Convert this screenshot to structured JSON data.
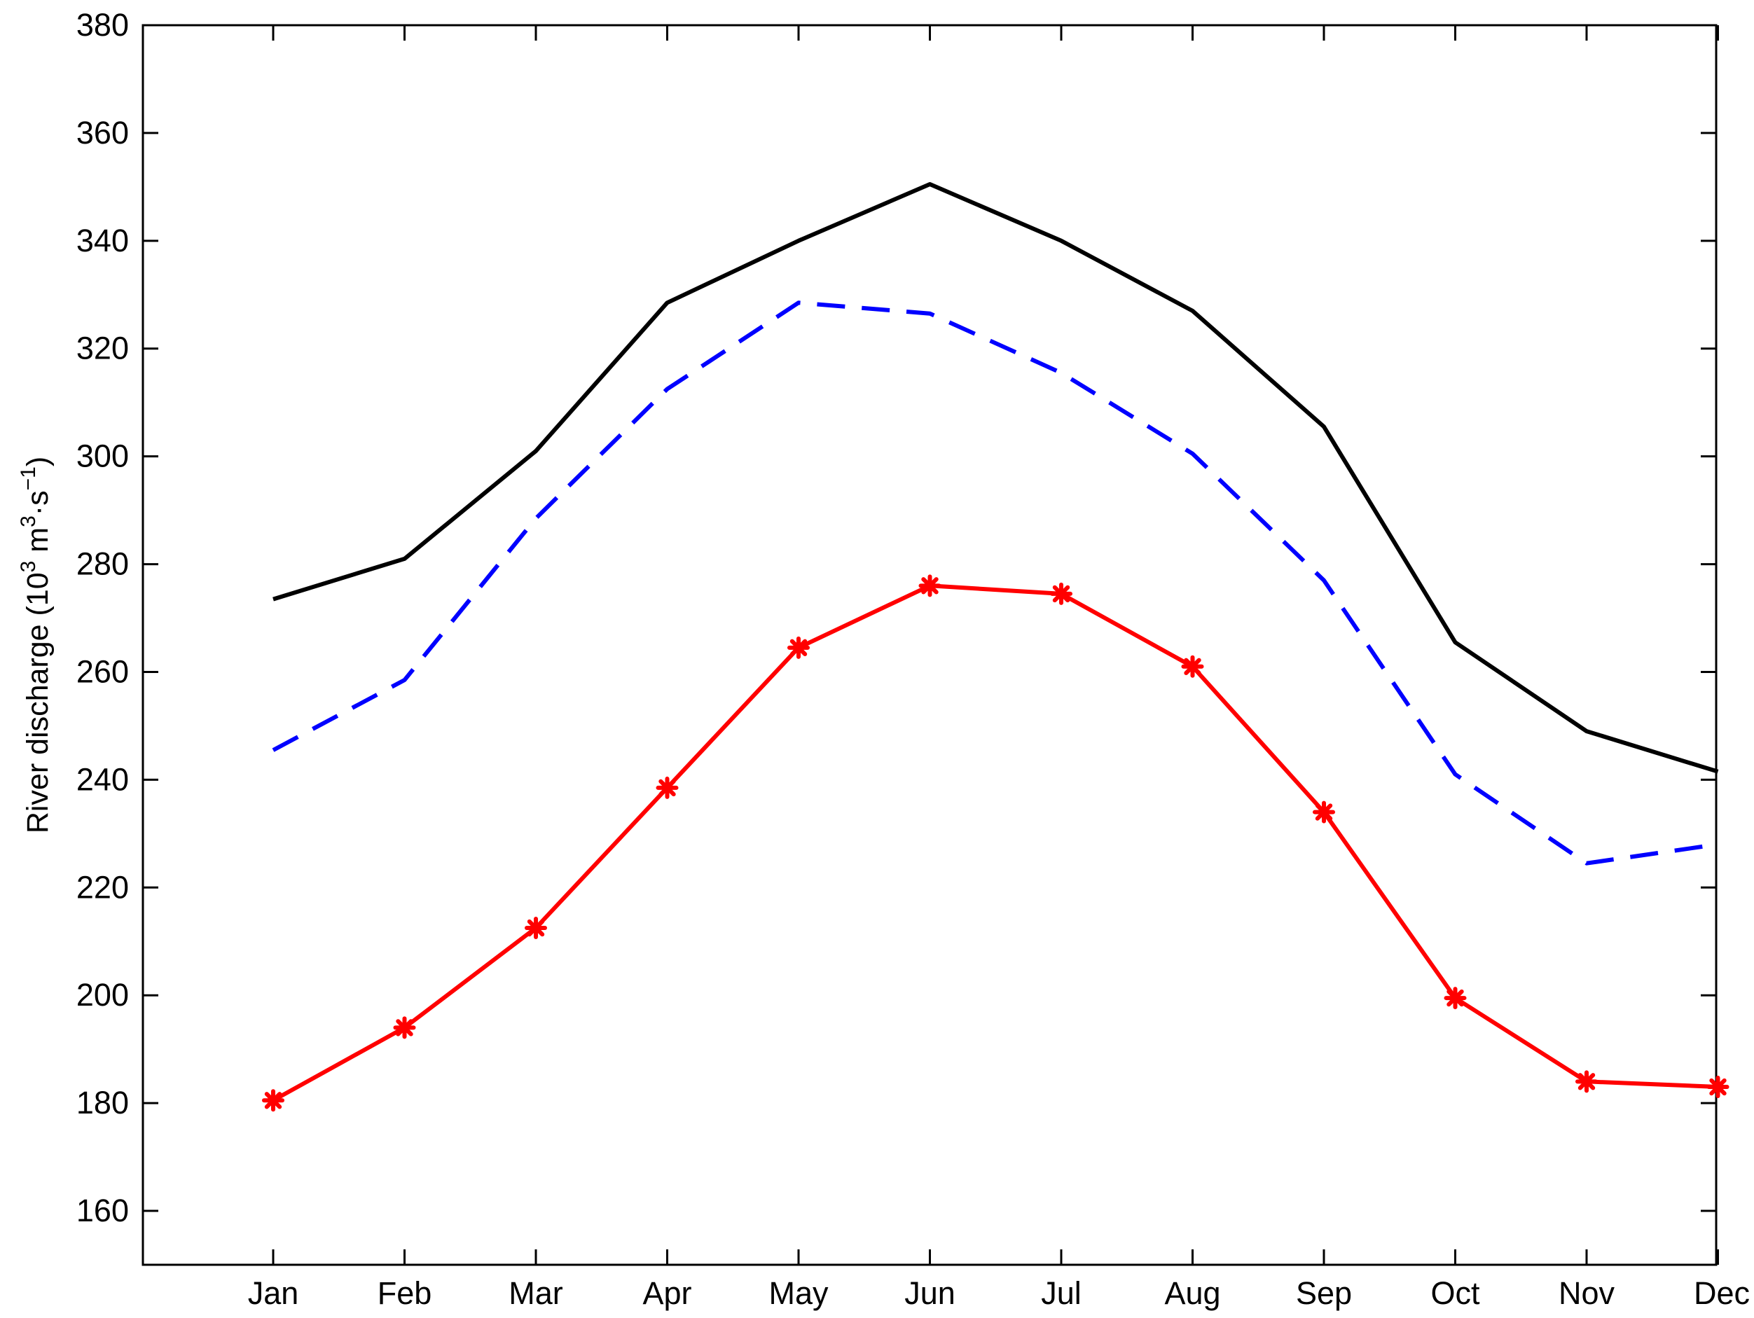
{
  "chart_data": {
    "type": "line",
    "title": "",
    "xlabel": "",
    "ylabel": {
      "main": "River discharge (10",
      "sup1": "3",
      "mid": " m",
      "sup2": "3",
      "dot": "·s",
      "sup3": "−1",
      "end": ")"
    },
    "categories": [
      "Jan",
      "Feb",
      "Mar",
      "Apr",
      "May",
      "Jun",
      "Jul",
      "Aug",
      "Sep",
      "Oct",
      "Nov",
      "Dec"
    ],
    "x_range": [
      "",
      "Dec"
    ],
    "ylim": [
      150,
      380
    ],
    "yticks": [
      160,
      180,
      200,
      220,
      240,
      260,
      280,
      300,
      320,
      340,
      360,
      380
    ],
    "grid": false,
    "series": [
      {
        "name": "series-black-solid",
        "color": "#000000",
        "dash": "solid",
        "marker": "none",
        "values": [
          273.5,
          281,
          301,
          328.5,
          340,
          350.5,
          340,
          327,
          305.5,
          265.5,
          249,
          241.5
        ]
      },
      {
        "name": "series-blue-dashed",
        "color": "#0000ff",
        "dash": "dashed",
        "marker": "none",
        "values": [
          245.5,
          258.5,
          288.5,
          312.5,
          328.5,
          326.5,
          315.5,
          300.5,
          277,
          241,
          224.5,
          228
        ]
      },
      {
        "name": "series-red-asterisk",
        "color": "#ff0000",
        "dash": "solid",
        "marker": "asterisk",
        "values": [
          180.5,
          194,
          212.5,
          238.5,
          264.5,
          276,
          274.5,
          261,
          234,
          199.5,
          184,
          183
        ]
      }
    ]
  }
}
